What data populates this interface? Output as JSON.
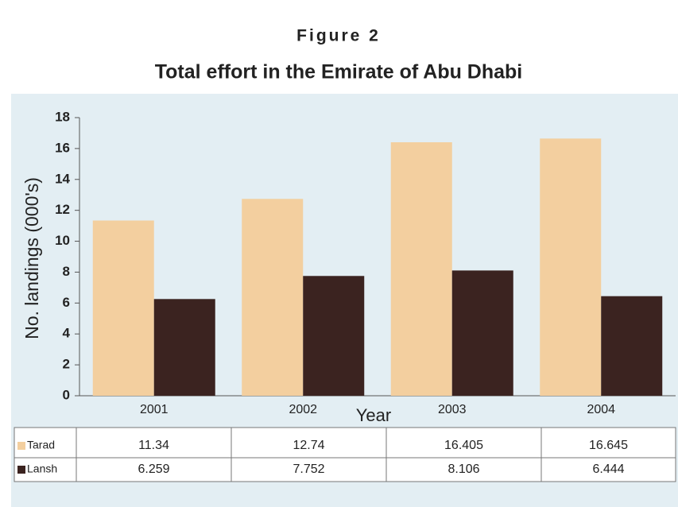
{
  "chart_data": {
    "type": "bar",
    "title": "Figure 2",
    "subtitle": "Total effort in the Emirate of Abu Dhabi",
    "y_label": "No. landings (000's)",
    "x_label": "Year",
    "categories": [
      "2001",
      "2002",
      "2003",
      "2004"
    ],
    "series": [
      {
        "name": "Tarad",
        "color": "#f3cf9f",
        "values": [
          11.34,
          12.74,
          16.405,
          16.645
        ]
      },
      {
        "name": "Lansh",
        "color": "#3b2320",
        "values": [
          6.259,
          7.752,
          8.106,
          6.444
        ]
      }
    ],
    "ylim": [
      0,
      18
    ],
    "yticks": [
      0,
      2,
      4,
      6,
      8,
      10,
      12,
      14,
      16,
      18
    ]
  }
}
